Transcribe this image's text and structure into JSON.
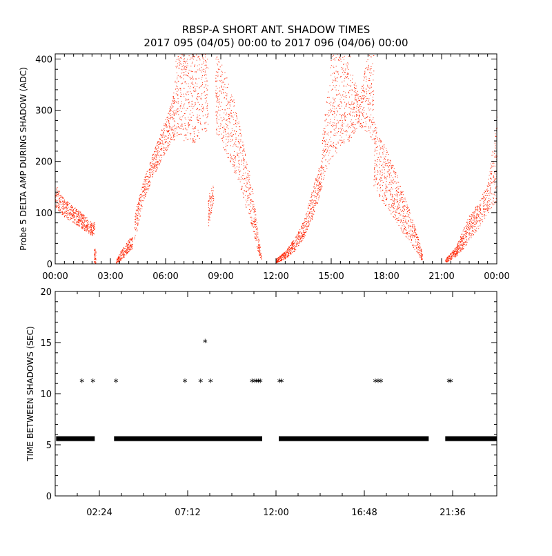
{
  "chart_data": [
    {
      "type": "scatter",
      "title": "RBSP-A SHORT ANT. SHADOW TIMES",
      "subtitle": "2017 095 (04/05) 00:00 to 2017 096 (04/06) 00:00",
      "xlabel": "",
      "ylabel": "Probe 5 DELTA AMP DURING SHADOW (ADC)",
      "xlim_hours": [
        0,
        24
      ],
      "ylim": [
        0,
        410
      ],
      "xtick_labels": [
        "00:00",
        "03:00",
        "06:00",
        "09:00",
        "12:00",
        "15:00",
        "18:00",
        "21:00",
        "00:00"
      ],
      "ytick_labels": [
        "0",
        "100",
        "200",
        "300",
        "400"
      ],
      "color": "#ff2200",
      "envelope_segments": [
        {
          "t": [
            0.0,
            0.5,
            1.0,
            1.5,
            2.0,
            2.15
          ],
          "lo": [
            110,
            92,
            80,
            68,
            55,
            60
          ],
          "hi": [
            155,
            128,
            112,
            98,
            80,
            82
          ]
        },
        {
          "t": [
            2.1,
            2.2
          ],
          "lo": [
            2,
            2
          ],
          "hi": [
            30,
            30
          ]
        },
        {
          "t": [
            3.3,
            3.6,
            4.0,
            4.2
          ],
          "lo": [
            2,
            8,
            25,
            30
          ],
          "hi": [
            8,
            28,
            48,
            55
          ]
        },
        {
          "t": [
            4.3,
            4.8,
            5.3,
            5.8,
            6.2,
            6.5
          ],
          "lo": [
            45,
            120,
            170,
            205,
            230,
            245
          ],
          "hi": [
            100,
            165,
            215,
            265,
            305,
            345
          ]
        },
        {
          "t": [
            6.5,
            7.0,
            7.5,
            8.0,
            8.3
          ],
          "lo": [
            250,
            240,
            235,
            250,
            265
          ],
          "hi": [
            410,
            410,
            410,
            410,
            410
          ]
        },
        {
          "t": [
            8.3,
            8.6
          ],
          "lo": [
            70,
            120
          ],
          "hi": [
            130,
            160
          ]
        },
        {
          "t": [
            8.7,
            9.2,
            9.7,
            10.2,
            10.7,
            11.0,
            11.2
          ],
          "lo": [
            260,
            220,
            180,
            130,
            70,
            25,
            3
          ],
          "hi": [
            410,
            380,
            320,
            240,
            150,
            70,
            15
          ]
        },
        {
          "t": [
            12.0,
            12.5,
            13.0,
            13.5,
            14.0,
            14.5
          ],
          "lo": [
            2,
            10,
            25,
            50,
            90,
            150
          ],
          "hi": [
            10,
            25,
            50,
            85,
            150,
            210
          ]
        },
        {
          "t": [
            14.5,
            15.0,
            15.5,
            16.0,
            16.5,
            17.0,
            17.3
          ],
          "lo": [
            160,
            200,
            230,
            240,
            270,
            255,
            230
          ],
          "hi": [
            250,
            410,
            410,
            410,
            325,
            410,
            410
          ]
        },
        {
          "t": [
            17.3,
            17.8,
            18.3,
            18.8,
            19.3,
            19.7,
            19.95
          ],
          "lo": [
            150,
            120,
            95,
            65,
            40,
            20,
            5
          ],
          "hi": [
            280,
            240,
            200,
            150,
            100,
            55,
            20
          ]
        },
        {
          "t": [
            21.2,
            21.8,
            22.4,
            23.0,
            23.5,
            24.0
          ],
          "lo": [
            2,
            15,
            40,
            70,
            100,
            125
          ],
          "hi": [
            10,
            35,
            90,
            120,
            160,
            290
          ]
        }
      ]
    },
    {
      "type": "scatter",
      "xlabel": "",
      "ylabel": "TIME BETWEEN SHADOWS (SEC)",
      "xlim_hours": [
        0,
        24
      ],
      "ylim": [
        0,
        20
      ],
      "xtick_labels": [
        "02:24",
        "07:12",
        "12:00",
        "16:48",
        "21:36"
      ],
      "ytick_labels": [
        "0",
        "5",
        "10",
        "15",
        "20"
      ],
      "marker": "*",
      "color": "#000000",
      "baseline_value": 5.6,
      "baseline_segments": [
        [
          0.05,
          2.15
        ],
        [
          3.2,
          11.25
        ],
        [
          12.15,
          20.3
        ],
        [
          21.2,
          24.0
        ]
      ],
      "points": [
        {
          "t": 1.45,
          "v": 11.1
        },
        {
          "t": 2.05,
          "v": 11.1
        },
        {
          "t": 3.3,
          "v": 11.1
        },
        {
          "t": 7.05,
          "v": 11.1
        },
        {
          "t": 7.9,
          "v": 11.1
        },
        {
          "t": 8.15,
          "v": 15.0
        },
        {
          "t": 8.45,
          "v": 11.1
        },
        {
          "t": 10.7,
          "v": 11.1
        },
        {
          "t": 10.85,
          "v": 11.1
        },
        {
          "t": 10.95,
          "v": 11.1
        },
        {
          "t": 11.05,
          "v": 11.1
        },
        {
          "t": 11.15,
          "v": 11.1
        },
        {
          "t": 12.2,
          "v": 11.1
        },
        {
          "t": 12.3,
          "v": 11.1
        },
        {
          "t": 17.4,
          "v": 11.1
        },
        {
          "t": 17.55,
          "v": 11.1
        },
        {
          "t": 17.7,
          "v": 11.1
        },
        {
          "t": 21.4,
          "v": 11.1
        },
        {
          "t": 21.5,
          "v": 11.1
        }
      ]
    }
  ]
}
